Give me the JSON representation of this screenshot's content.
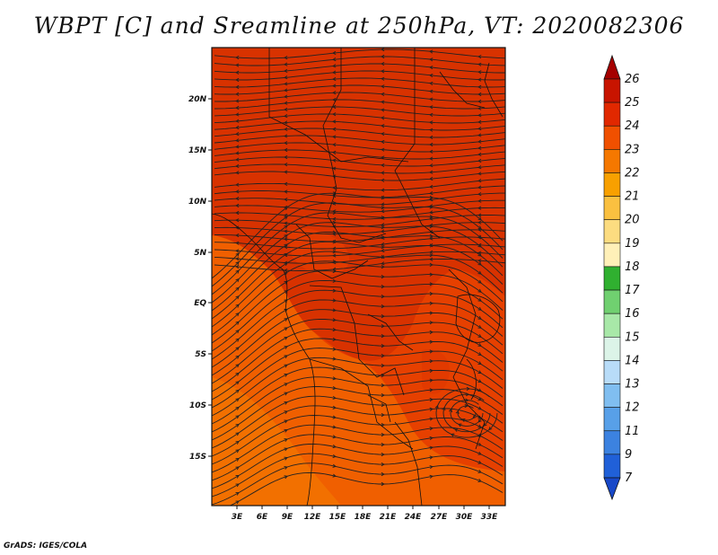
{
  "title": "WBPT [C] and Sreamline at 250hPa, VT: 2020082306",
  "footer": "GrADS: IGES/COLA",
  "map": {
    "lon_labels": [
      "3E",
      "6E",
      "9E",
      "12E",
      "15E",
      "18E",
      "21E",
      "24E",
      "27E",
      "30E",
      "33E"
    ],
    "lat_labels": [
      "20N",
      "15N",
      "10N",
      "5N",
      "EQ",
      "5S",
      "10S",
      "15S"
    ],
    "lon_range": [
      0,
      35
    ],
    "lat_range": [
      -20,
      25
    ]
  },
  "colorbar": {
    "levels": [
      "26",
      "25",
      "24",
      "23",
      "22",
      "21",
      "20",
      "19",
      "18",
      "17",
      "16",
      "15",
      "14",
      "13",
      "12",
      "11",
      "9",
      "7"
    ],
    "colors": [
      "#a50000",
      "#c81400",
      "#e12800",
      "#f05000",
      "#f57800",
      "#f8a000",
      "#fac040",
      "#fcdc80",
      "#fff0b8",
      "#30b030",
      "#70d070",
      "#a8e8a8",
      "#dcf4e8",
      "#b8dcf8",
      "#80bef0",
      "#58a0e8",
      "#3c82e0",
      "#2060d8",
      "#1848c8"
    ]
  },
  "field_colors": {
    "dark": "#d83200",
    "mid": "#e64000",
    "light": "#f05f00",
    "lighter": "#f27000"
  }
}
